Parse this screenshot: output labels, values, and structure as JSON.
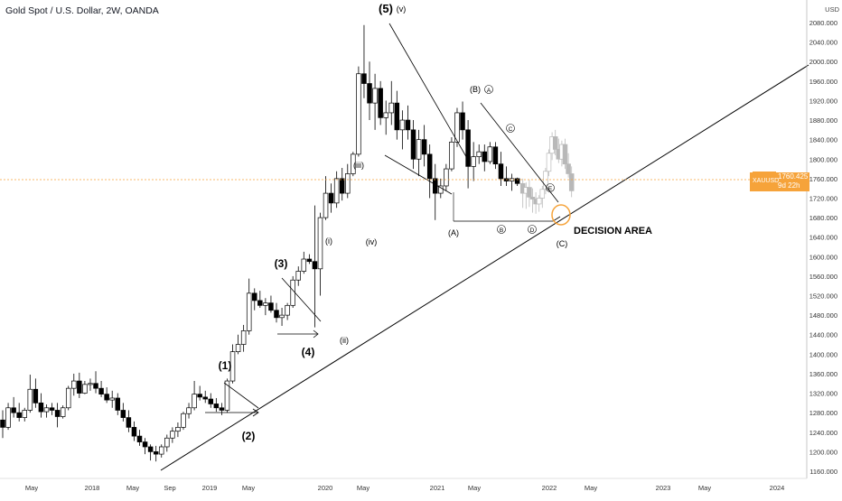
{
  "header": {
    "title": "Gold Spot / U.S. Dollar, 2W, OANDA"
  },
  "axis": {
    "currency": "USD",
    "y_ticks": [
      "2080.000",
      "2040.000",
      "2000.000",
      "1960.000",
      "1920.000",
      "1880.000",
      "1840.000",
      "1800.000",
      "1760.000",
      "1720.000",
      "1680.000",
      "1640.000",
      "1600.000",
      "1560.000",
      "1520.000",
      "1480.000",
      "1440.000",
      "1400.000",
      "1360.000",
      "1320.000",
      "1280.000",
      "1240.000",
      "1200.000",
      "1160.000"
    ],
    "x_ticks": [
      "May",
      "2018",
      "May",
      "Sep",
      "2019",
      "May",
      "2020",
      "May",
      "2021",
      "May",
      "2022",
      "May",
      "2023",
      "May",
      "2024"
    ]
  },
  "price_marker": {
    "symbol": "XAUUSD",
    "value": "1760.425",
    "countdown": "9d 22h"
  },
  "annotations": {
    "wave5": "(5)",
    "wave_v": "(v)",
    "wave3": "(3)",
    "wave4": "(4)",
    "wave1": "(1)",
    "wave2": "(2)",
    "wave_iii": "(iii)",
    "wave_i": "(i)",
    "wave_iv": "(iv)",
    "wave_ii": "(ii)",
    "waveB": "(B)",
    "waveA": "(A)",
    "waveC": "(C)",
    "circ_A": "A",
    "circ_B": "B",
    "circ_C": "C",
    "circ_D": "D",
    "circ_E": "E",
    "decision": "DECISION AREA"
  },
  "colors": {
    "candle": "#000000",
    "projection": "#b8b8b8",
    "accent": "#f6a33a"
  },
  "chart_data": {
    "type": "candlestick",
    "symbol": "XAUUSD",
    "timeframe": "2W",
    "ylim": [
      1150,
      2120
    ],
    "x_axis": "time",
    "grid": false,
    "ohlc": [
      [
        1265,
        1285,
        1228,
        1250
      ],
      [
        1250,
        1300,
        1245,
        1290
      ],
      [
        1290,
        1312,
        1270,
        1280
      ],
      [
        1280,
        1300,
        1262,
        1270
      ],
      [
        1270,
        1290,
        1262,
        1285
      ],
      [
        1285,
        1358,
        1280,
        1328
      ],
      [
        1328,
        1350,
        1290,
        1300
      ],
      [
        1300,
        1320,
        1270,
        1282
      ],
      [
        1282,
        1297,
        1270,
        1290
      ],
      [
        1290,
        1300,
        1275,
        1285
      ],
      [
        1285,
        1300,
        1250,
        1272
      ],
      [
        1272,
        1295,
        1268,
        1290
      ],
      [
        1290,
        1335,
        1285,
        1330
      ],
      [
        1330,
        1360,
        1315,
        1345
      ],
      [
        1345,
        1362,
        1310,
        1320
      ],
      [
        1320,
        1345,
        1318,
        1338
      ],
      [
        1338,
        1350,
        1325,
        1340
      ],
      [
        1340,
        1365,
        1320,
        1330
      ],
      [
        1330,
        1345,
        1312,
        1318
      ],
      [
        1318,
        1332,
        1300,
        1306
      ],
      [
        1306,
        1325,
        1290,
        1310
      ],
      [
        1310,
        1320,
        1275,
        1285
      ],
      [
        1285,
        1300,
        1262,
        1270
      ],
      [
        1270,
        1285,
        1240,
        1250
      ],
      [
        1250,
        1262,
        1222,
        1232
      ],
      [
        1232,
        1245,
        1212,
        1220
      ],
      [
        1220,
        1228,
        1195,
        1210
      ],
      [
        1210,
        1215,
        1182,
        1200
      ],
      [
        1200,
        1212,
        1180,
        1195
      ],
      [
        1195,
        1215,
        1188,
        1210
      ],
      [
        1210,
        1235,
        1200,
        1228
      ],
      [
        1228,
        1250,
        1218,
        1242
      ],
      [
        1242,
        1260,
        1230,
        1250
      ],
      [
        1250,
        1282,
        1245,
        1278
      ],
      [
        1278,
        1300,
        1268,
        1290
      ],
      [
        1290,
        1345,
        1285,
        1318
      ],
      [
        1318,
        1335,
        1305,
        1312
      ],
      [
        1312,
        1325,
        1300,
        1308
      ],
      [
        1308,
        1320,
        1290,
        1298
      ],
      [
        1298,
        1310,
        1282,
        1290
      ],
      [
        1290,
        1300,
        1275,
        1285
      ],
      [
        1285,
        1350,
        1280,
        1345
      ],
      [
        1345,
        1420,
        1340,
        1405
      ],
      [
        1405,
        1440,
        1400,
        1420
      ],
      [
        1420,
        1460,
        1405,
        1448
      ],
      [
        1448,
        1555,
        1440,
        1525
      ],
      [
        1525,
        1535,
        1490,
        1510
      ],
      [
        1510,
        1530,
        1495,
        1500
      ],
      [
        1500,
        1515,
        1480,
        1505
      ],
      [
        1505,
        1520,
        1485,
        1490
      ],
      [
        1490,
        1505,
        1465,
        1475
      ],
      [
        1475,
        1495,
        1458,
        1480
      ],
      [
        1480,
        1505,
        1470,
        1500
      ],
      [
        1500,
        1560,
        1495,
        1552
      ],
      [
        1552,
        1580,
        1540,
        1570
      ],
      [
        1570,
        1610,
        1565,
        1595
      ],
      [
        1595,
        1605,
        1585,
        1590
      ],
      [
        1590,
        1705,
        1455,
        1575
      ],
      [
        1575,
        1690,
        1520,
        1680
      ],
      [
        1680,
        1765,
        1675,
        1730
      ],
      [
        1730,
        1750,
        1690,
        1710
      ],
      [
        1710,
        1775,
        1700,
        1760
      ],
      [
        1760,
        1782,
        1715,
        1730
      ],
      [
        1730,
        1790,
        1720,
        1770
      ],
      [
        1770,
        1815,
        1765,
        1810
      ],
      [
        1810,
        1990,
        1805,
        1975
      ],
      [
        1975,
        2075,
        1925,
        1955
      ],
      [
        1955,
        2000,
        1880,
        1915
      ],
      [
        1915,
        1975,
        1860,
        1945
      ],
      [
        1945,
        1960,
        1870,
        1885
      ],
      [
        1885,
        1920,
        1850,
        1895
      ],
      [
        1895,
        1960,
        1870,
        1915
      ],
      [
        1915,
        1940,
        1840,
        1860
      ],
      [
        1860,
        1900,
        1820,
        1880
      ],
      [
        1880,
        1910,
        1840,
        1860
      ],
      [
        1860,
        1880,
        1780,
        1800
      ],
      [
        1800,
        1860,
        1765,
        1840
      ],
      [
        1840,
        1870,
        1785,
        1810
      ],
      [
        1810,
        1830,
        1720,
        1760
      ],
      [
        1760,
        1790,
        1675,
        1730
      ],
      [
        1730,
        1760,
        1720,
        1745
      ],
      [
        1745,
        1790,
        1735,
        1780
      ],
      [
        1780,
        1845,
        1775,
        1835
      ],
      [
        1835,
        1905,
        1825,
        1895
      ],
      [
        1895,
        1918,
        1840,
        1860
      ],
      [
        1860,
        1880,
        1740,
        1785
      ],
      [
        1785,
        1835,
        1755,
        1805
      ],
      [
        1805,
        1830,
        1790,
        1815
      ],
      [
        1815,
        1830,
        1775,
        1795
      ],
      [
        1795,
        1835,
        1790,
        1825
      ],
      [
        1825,
        1835,
        1780,
        1790
      ],
      [
        1790,
        1815,
        1745,
        1760
      ],
      [
        1760,
        1785,
        1745,
        1755
      ],
      [
        1755,
        1770,
        1735,
        1760
      ],
      [
        1760,
        1762,
        1745,
        1750
      ]
    ],
    "projection_ohlc": [
      [
        1750,
        1760,
        1700,
        1730
      ],
      [
        1730,
        1752,
        1698,
        1742
      ],
      [
        1742,
        1758,
        1702,
        1722
      ],
      [
        1722,
        1740,
        1690,
        1718
      ],
      [
        1718,
        1732,
        1688,
        1708
      ],
      [
        1708,
        1726,
        1692,
        1720
      ],
      [
        1720,
        1745,
        1700,
        1738
      ],
      [
        1738,
        1782,
        1728,
        1775
      ],
      [
        1775,
        1820,
        1765,
        1812
      ],
      [
        1812,
        1855,
        1798,
        1846
      ],
      [
        1846,
        1860,
        1808,
        1820
      ],
      [
        1820,
        1842,
        1792,
        1800
      ],
      [
        1800,
        1838,
        1785,
        1830
      ],
      [
        1830,
        1842,
        1780,
        1790
      ],
      [
        1790,
        1812,
        1762,
        1770
      ],
      [
        1770,
        1785,
        1722,
        1735
      ]
    ]
  }
}
